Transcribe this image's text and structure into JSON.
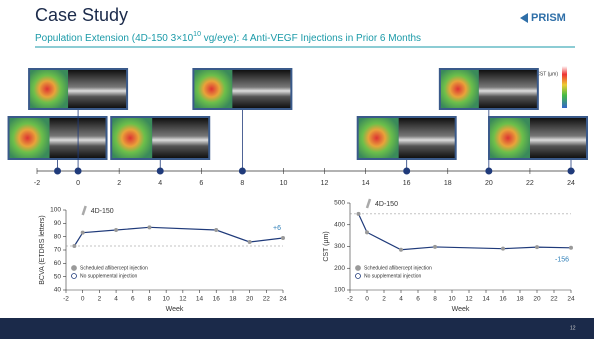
{
  "header": {
    "title": "Case Study",
    "subtitle": [
      "Population Extension (4D-150 3×10",
      "10",
      " vg/eye): 4 Anti-VEGF Injections in Prior 6 Months"
    ],
    "logo": "PRISM",
    "page_number": "12"
  },
  "timeline": {
    "xlim": [
      -2,
      24
    ],
    "xticks": [
      -2,
      0,
      2,
      4,
      6,
      8,
      10,
      12,
      14,
      16,
      18,
      20,
      22,
      24
    ],
    "visits": [
      -1,
      0,
      4,
      8,
      16,
      20,
      24
    ],
    "colorbar_label": "CST (µm)"
  },
  "chart_data": [
    {
      "type": "line",
      "ylabel": "BCVA (ETDRS letters)",
      "xlabel": "Week",
      "x": [
        -1,
        0,
        4,
        8,
        16,
        20,
        24
      ],
      "values": [
        73,
        83,
        85,
        87,
        85,
        76,
        79
      ],
      "color": "#1f3a7a",
      "marker_color": "#9a9a9a",
      "xlim": [
        -2,
        24
      ],
      "xticks": [
        -2,
        0,
        2,
        4,
        6,
        8,
        10,
        12,
        14,
        16,
        18,
        20,
        22,
        24
      ],
      "ylim": [
        40,
        100
      ],
      "yticks": [
        40,
        50,
        60,
        70,
        80,
        90,
        100
      ],
      "reference_line": 73,
      "annotation": "4D-150",
      "end_label": "+6",
      "legend": [
        {
          "label": "Scheduled aflibercept injection",
          "color": "#9a9a9a"
        },
        {
          "label": "No supplemental injection",
          "color": "#1f3a7a"
        }
      ]
    },
    {
      "type": "line",
      "ylabel": "CST (µm)",
      "xlabel": "Week",
      "x": [
        -1,
        0,
        4,
        8,
        16,
        20,
        24
      ],
      "values": [
        450,
        365,
        285,
        298,
        290,
        297,
        294
      ],
      "color": "#1f3a7a",
      "marker_color": "#9a9a9a",
      "xlim": [
        -2,
        24
      ],
      "xticks": [
        -2,
        0,
        2,
        4,
        6,
        8,
        10,
        12,
        14,
        16,
        18,
        20,
        22,
        24
      ],
      "ylim": [
        100,
        500
      ],
      "yticks": [
        100,
        200,
        300,
        400,
        500
      ],
      "reference_line": 450,
      "annotation": "4D-150",
      "end_label": "-156",
      "legend": [
        {
          "label": "Scheduled aflibercept injection",
          "color": "#9a9a9a"
        },
        {
          "label": "No supplemental injection",
          "color": "#1f3a7a"
        }
      ]
    }
  ]
}
